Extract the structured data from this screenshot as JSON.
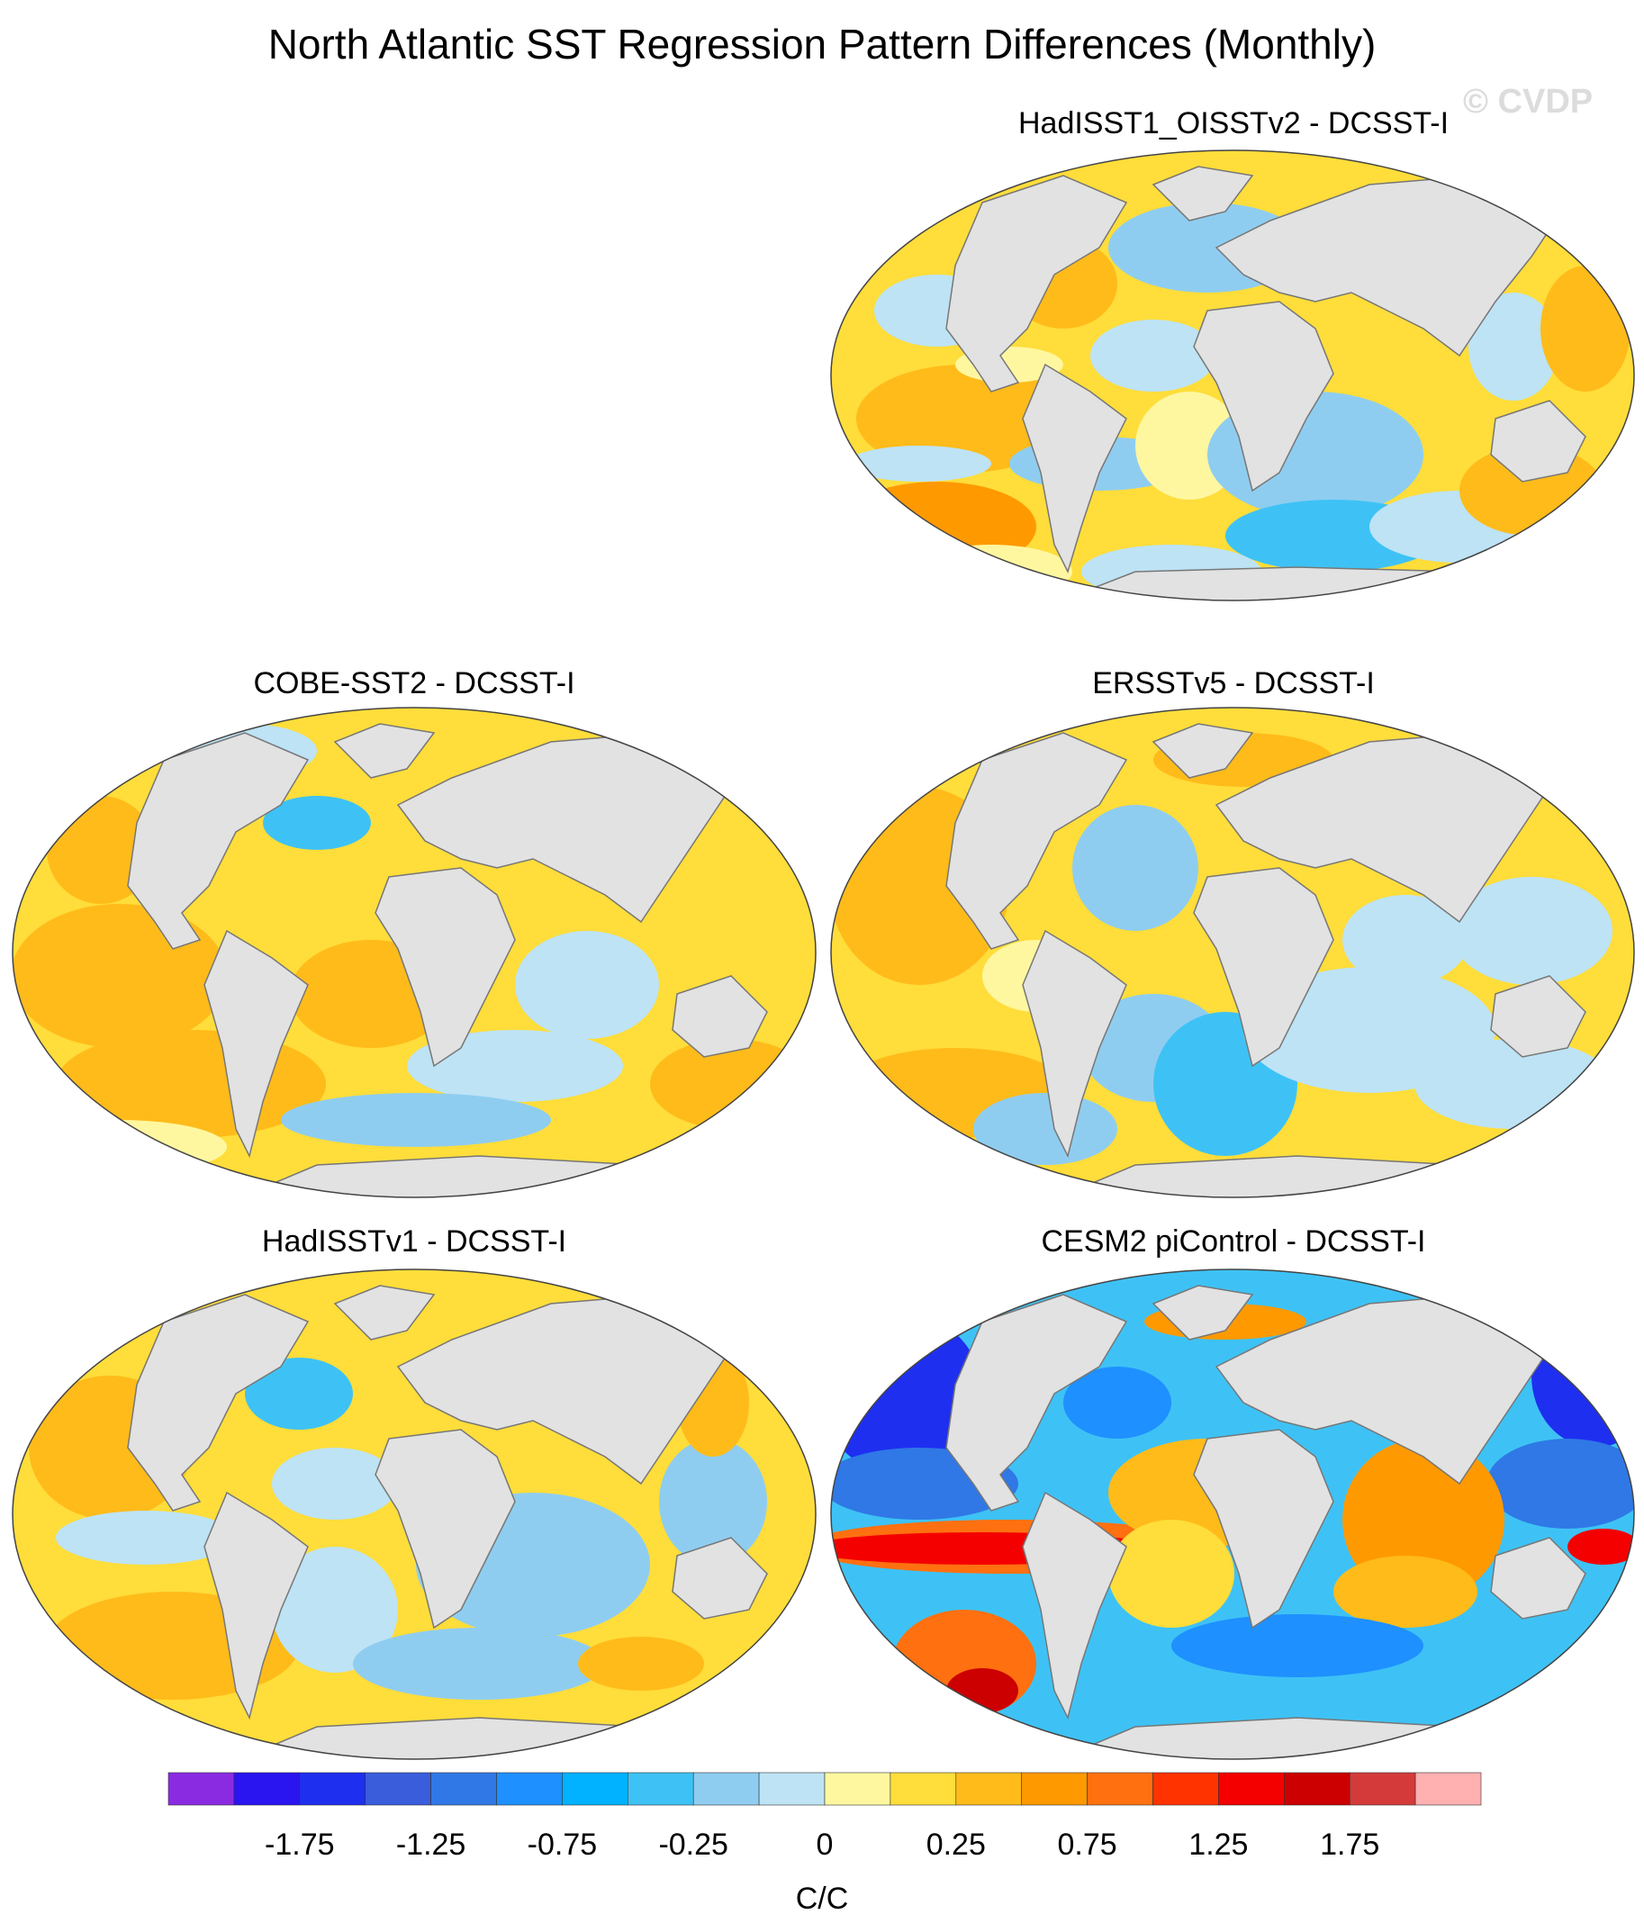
{
  "title": "North Atlantic SST Regression Pattern Differences (Monthly)",
  "watermark": "© CVDP",
  "panels": [
    {
      "id": "hadisst1-oisstv2",
      "title": "HadISST1_OISSTv2 - DCSST-I",
      "tint": "mixed"
    },
    {
      "id": "cobe-sst2",
      "title": "COBE-SST2 - DCSST-I",
      "tint": "warm"
    },
    {
      "id": "ersstv5",
      "title": "ERSSTv5 - DCSST-I",
      "tint": "mixed"
    },
    {
      "id": "hadisstv1",
      "title": "HadISSTv1 - DCSST-I",
      "tint": "mixed"
    },
    {
      "id": "cesm2-picontrol",
      "title": "CESM2 piControl - DCSST-I",
      "tint": "strong"
    }
  ],
  "colorbar": {
    "units": "C/C",
    "colors": [
      "#8a2be2",
      "#2a14f0",
      "#1e2ff0",
      "#3a5ddc",
      "#2f78e6",
      "#1e90ff",
      "#00b2ff",
      "#3ec2f5",
      "#8fcdf0",
      "#bde3f5",
      "#fff7a0",
      "#ffdd3a",
      "#ffbb1a",
      "#ff9900",
      "#ff7010",
      "#ff3300",
      "#f50000",
      "#cc0000",
      "#d43a3a",
      "#ffb0b0"
    ],
    "tick_labels": [
      "-1.75",
      "-1.25",
      "-0.75",
      "-0.25",
      "0",
      "0.25",
      "0.75",
      "1.25",
      "1.75"
    ]
  }
}
